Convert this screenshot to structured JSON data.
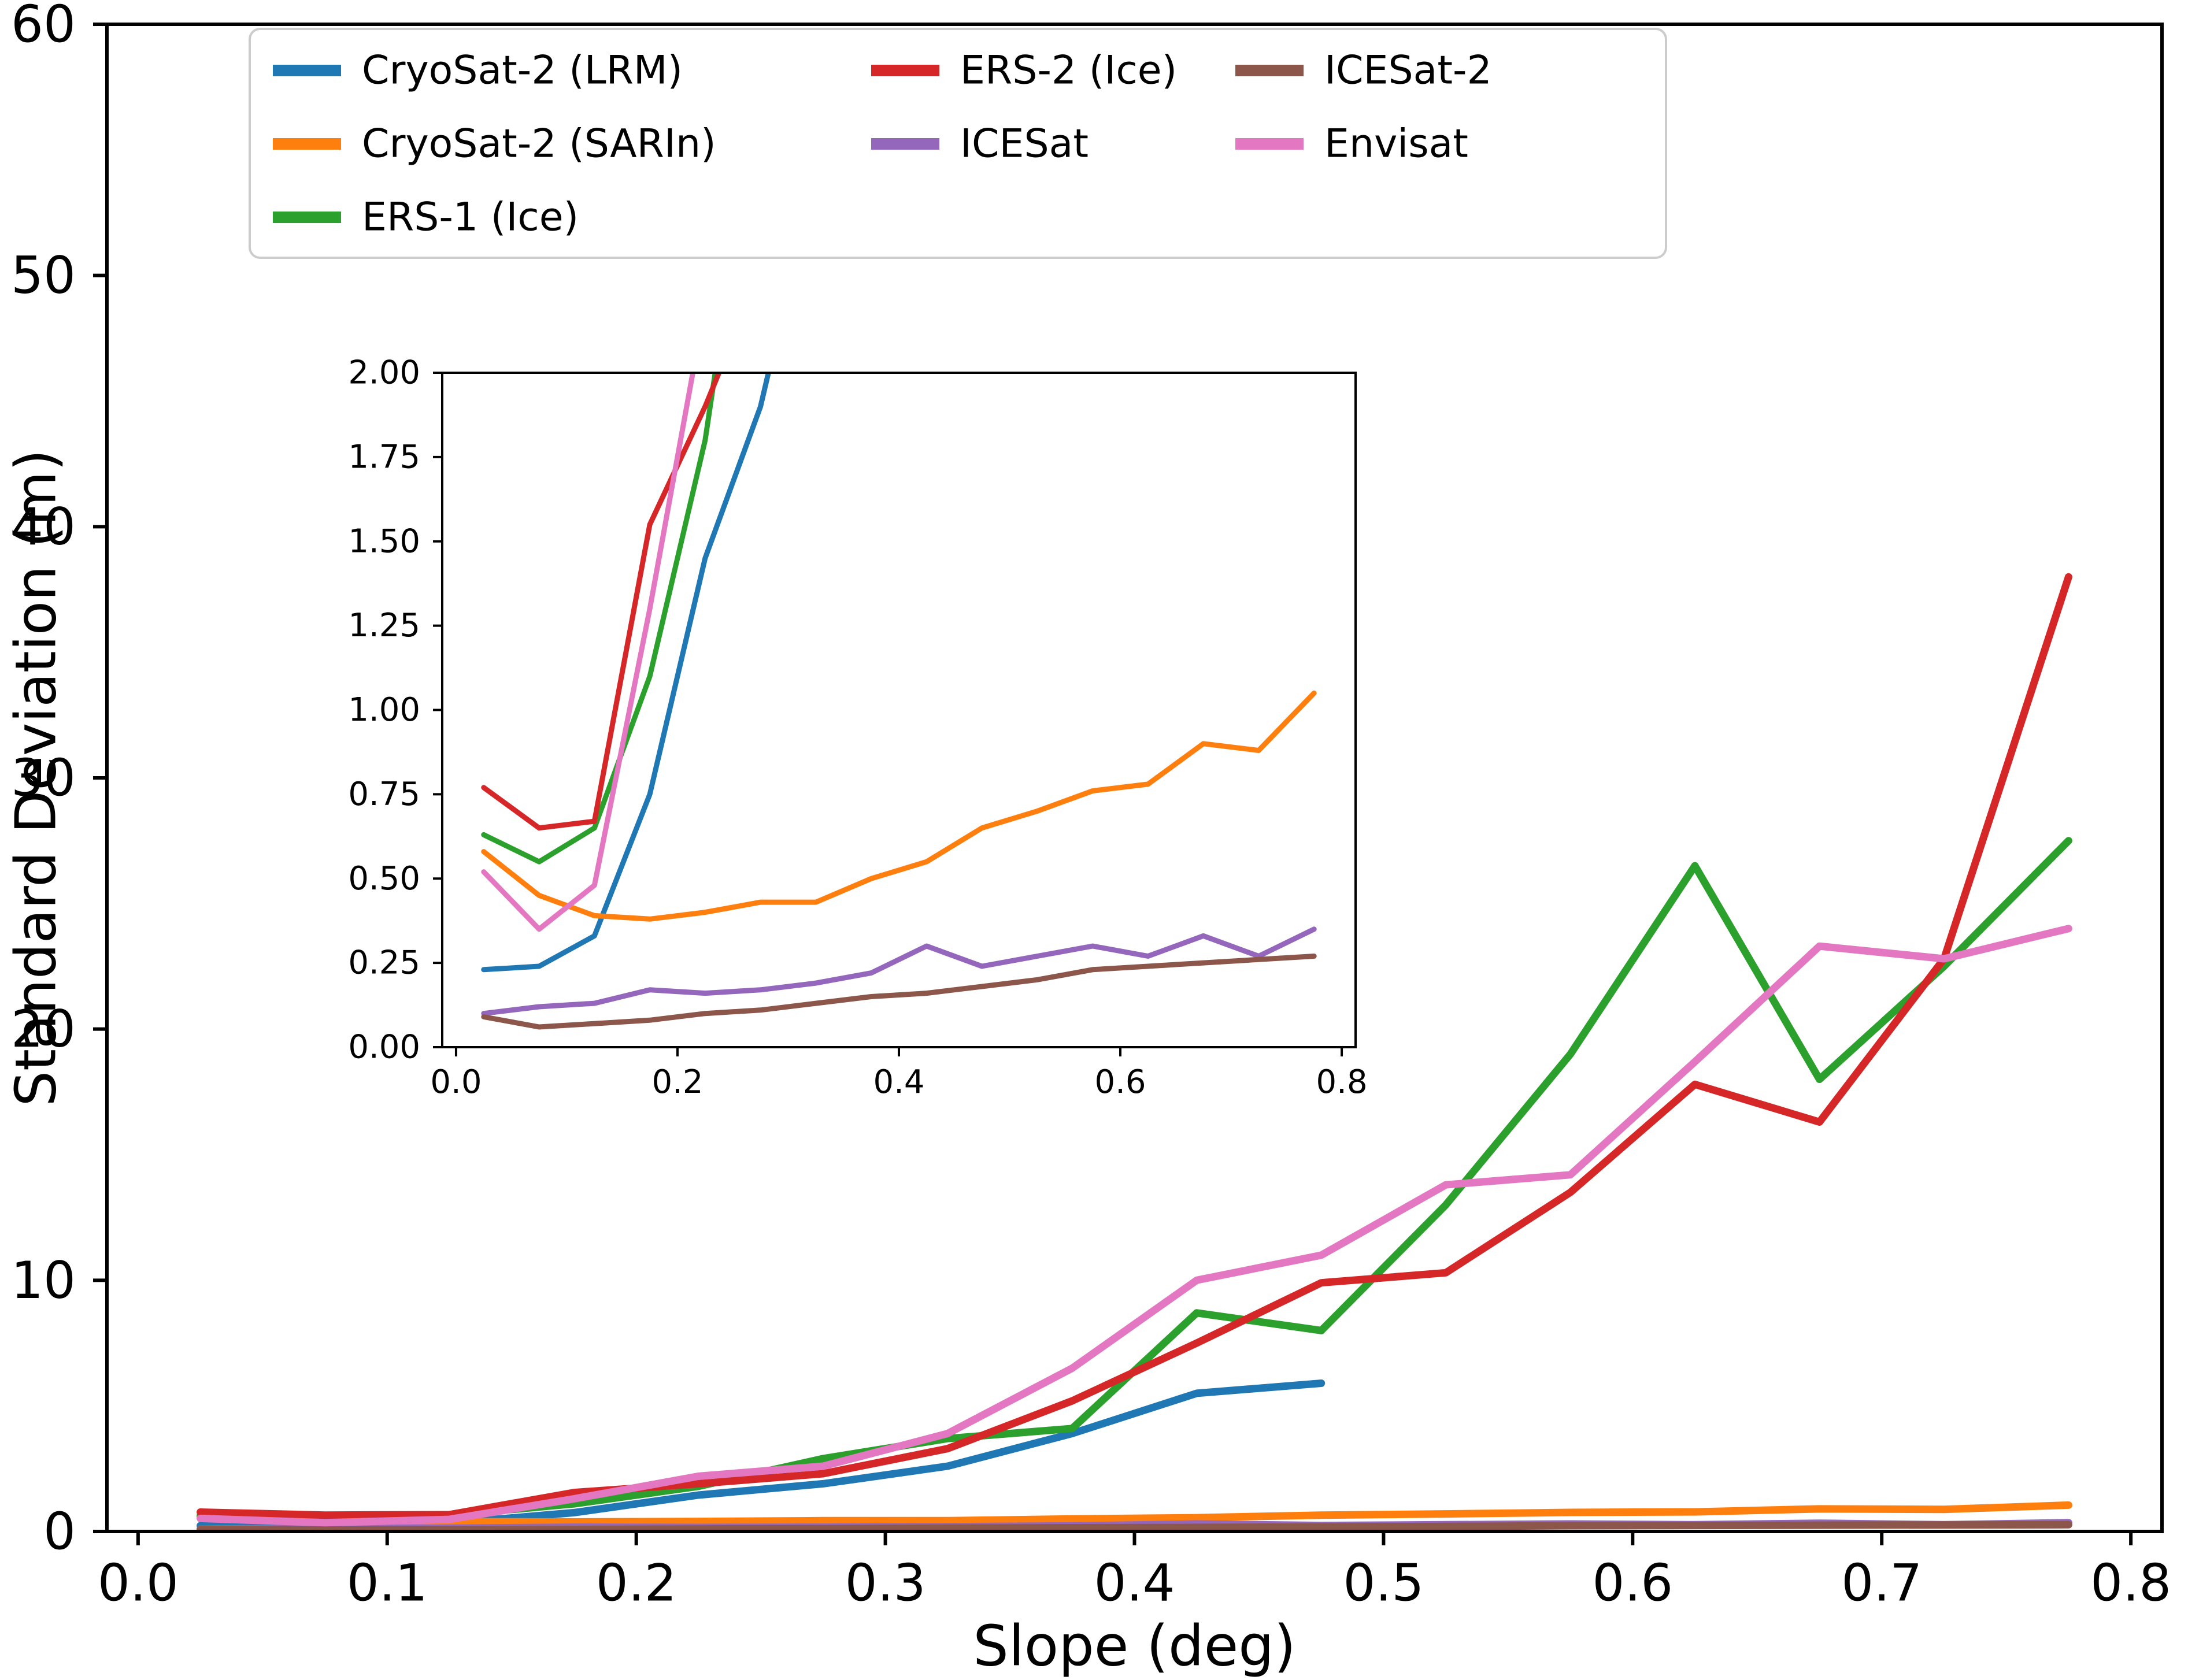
{
  "figure": {
    "background": "#ffffff"
  },
  "chart_data": {
    "type": "line",
    "title": "",
    "xlabel": "Slope (deg)",
    "ylabel": "Standard Deviation (m)",
    "xlim": [
      0.0,
      0.8
    ],
    "ylim": [
      0,
      60
    ],
    "grid": false,
    "xticks": [
      0.0,
      0.1,
      0.2,
      0.3,
      0.4,
      0.5,
      0.6,
      0.7,
      0.8
    ],
    "xtick_labels": [
      "0.0",
      "0.1",
      "0.2",
      "0.3",
      "0.4",
      "0.5",
      "0.6",
      "0.7",
      "0.8"
    ],
    "yticks": [
      0,
      10,
      20,
      30,
      40,
      50,
      60
    ],
    "ytick_labels": [
      "0",
      "10",
      "20",
      "30",
      "40",
      "50",
      "60"
    ],
    "x": [
      0.025,
      0.075,
      0.125,
      0.175,
      0.225,
      0.275,
      0.325,
      0.375,
      0.425,
      0.475,
      0.525,
      0.575,
      0.625,
      0.675,
      0.725,
      0.775
    ],
    "series": [
      {
        "name": "CryoSat-2 (LRM)",
        "color": "#1f77b4",
        "values": [
          0.23,
          0.24,
          0.33,
          0.75,
          1.45,
          1.9,
          2.6,
          3.9,
          5.5,
          5.9,
          null,
          null,
          null,
          null,
          null,
          null
        ]
      },
      {
        "name": "CryoSat-2 (SARIn)",
        "color": "#ff7f0e",
        "values": [
          0.58,
          0.45,
          0.39,
          0.38,
          0.4,
          0.43,
          0.43,
          0.5,
          0.55,
          0.65,
          0.7,
          0.76,
          0.78,
          0.9,
          0.88,
          1.05
        ]
      },
      {
        "name": "ERS-1 (Ice)",
        "color": "#2ca02c",
        "values": [
          0.63,
          0.55,
          0.65,
          1.1,
          1.8,
          2.9,
          3.7,
          4.1,
          8.7,
          8.0,
          13.0,
          19.0,
          26.5,
          18.0,
          22.5,
          27.5
        ]
      },
      {
        "name": "ERS-2 (Ice)",
        "color": "#d62728",
        "values": [
          0.77,
          0.65,
          0.67,
          1.55,
          1.9,
          2.3,
          3.3,
          5.2,
          7.5,
          9.9,
          10.3,
          13.5,
          17.8,
          16.3,
          22.8,
          38.0
        ]
      },
      {
        "name": "ICESat",
        "color": "#9467bd",
        "values": [
          0.1,
          0.12,
          0.13,
          0.17,
          0.16,
          0.17,
          0.19,
          0.22,
          0.3,
          0.24,
          0.27,
          0.3,
          0.27,
          0.33,
          0.27,
          0.35
        ]
      },
      {
        "name": "ICESat-2",
        "color": "#8c564b",
        "values": [
          0.09,
          0.06,
          0.07,
          0.08,
          0.1,
          0.11,
          0.13,
          0.15,
          0.16,
          0.18,
          0.2,
          0.23,
          0.24,
          0.25,
          0.26,
          0.27
        ]
      },
      {
        "name": "Envisat",
        "color": "#e377c2",
        "values": [
          0.52,
          0.35,
          0.48,
          1.3,
          2.2,
          2.6,
          3.9,
          6.5,
          10.0,
          11.0,
          13.8,
          14.2,
          18.7,
          23.3,
          22.8,
          24.0
        ]
      }
    ],
    "legend": {
      "location": "upper left",
      "ncol": 3,
      "column_order": [
        [
          "CryoSat-2 (LRM)",
          "CryoSat-2 (SARIn)",
          "ERS-1 (Ice)"
        ],
        [
          "ERS-2 (Ice)",
          "ICESat"
        ],
        [
          "ICESat-2",
          "Envisat"
        ]
      ]
    },
    "inset": {
      "xlim": [
        0.0,
        0.8
      ],
      "ylim": [
        0.0,
        2.0
      ],
      "xticks": [
        0.0,
        0.2,
        0.4,
        0.6,
        0.8
      ],
      "xtick_labels": [
        "0.0",
        "0.2",
        "0.4",
        "0.6",
        "0.8"
      ],
      "yticks": [
        0.0,
        0.25,
        0.5,
        0.75,
        1.0,
        1.25,
        1.5,
        1.75,
        2.0
      ],
      "ytick_labels": [
        "0.00",
        "0.25",
        "0.50",
        "0.75",
        "1.00",
        "1.25",
        "1.50",
        "1.75",
        "2.00"
      ],
      "note": "inset shows same series as main axes, zoomed to 0-2 m"
    }
  }
}
